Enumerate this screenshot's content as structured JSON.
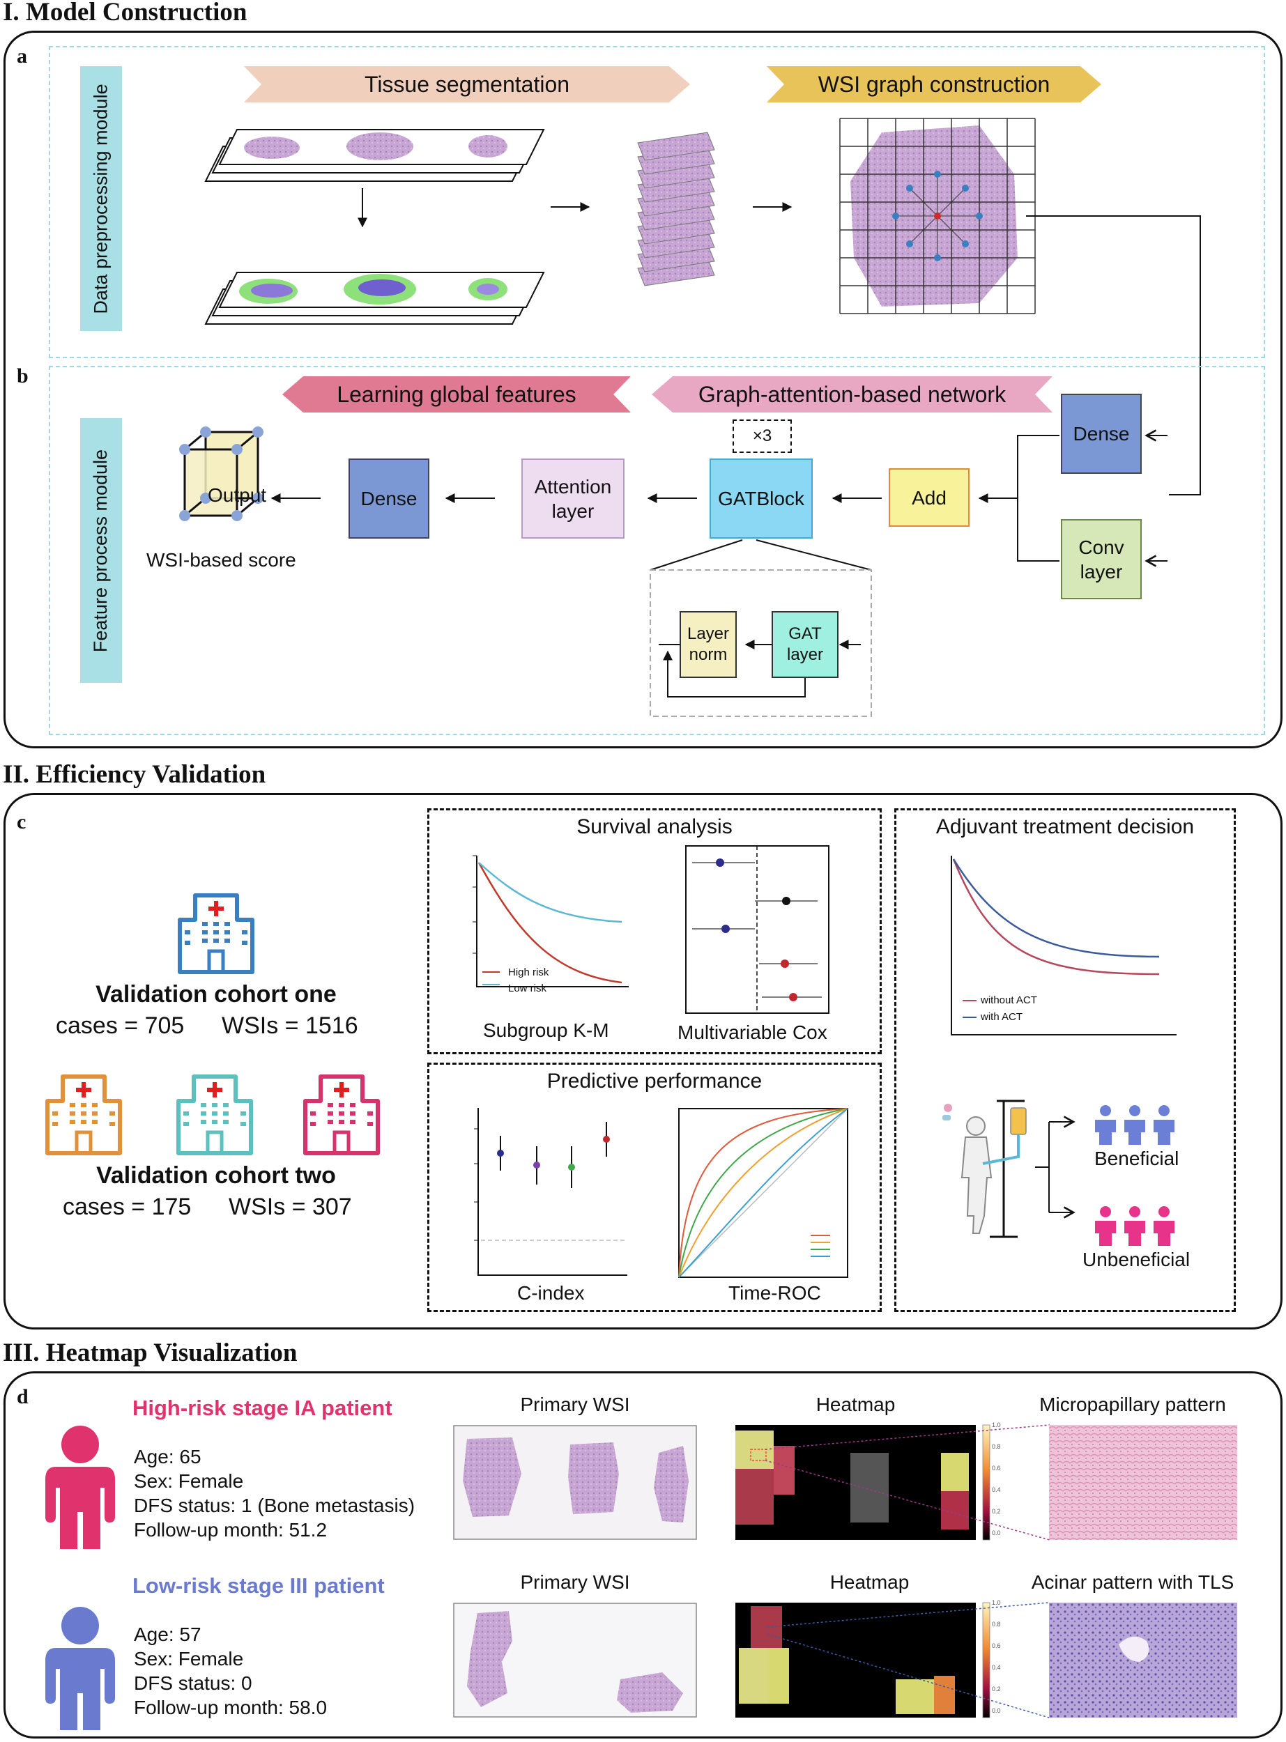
{
  "section1": {
    "title": "I. Model Construction"
  },
  "panel_a": {
    "label": "a",
    "side_label": "Data preprocessing module",
    "banner_segmentation": "Tissue segmentation",
    "banner_graph": "WSI graph construction"
  },
  "panel_b": {
    "label": "b",
    "side_label": "Feature process module",
    "banner_global": "Learning global features",
    "banner_gat": "Graph-attention-based network",
    "repeat": "×3",
    "output": "Output",
    "score": "WSI-based score",
    "dense_left": "Dense",
    "attention": "Attention layer",
    "gatblock": "GATBlock",
    "add": "Add",
    "dense_right": "Dense",
    "conv": "Conv layer",
    "layer_norm": "Layer norm",
    "gat_layer": "GAT layer"
  },
  "section2": {
    "title": "II. Efficiency Validation"
  },
  "panel_c": {
    "label": "c",
    "cohort_one": {
      "name": "Validation cohort one",
      "cases": "cases = 705",
      "wsis": "WSIs = 1516"
    },
    "cohort_two": {
      "name": "Validation cohort two",
      "cases": "cases = 175",
      "wsis": "WSIs = 307"
    },
    "survival_title": "Survival analysis",
    "km_label": "Subgroup K-M",
    "km_legend": [
      "High risk",
      "Low risk"
    ],
    "cox_label": "Multivariable Cox",
    "predictive_title": "Predictive performance",
    "cindex_label": "C-index",
    "roc_label": "Time-ROC",
    "adjuvant_title": "Adjuvant treatment decision",
    "act_legend": [
      "without ACT",
      "with ACT"
    ],
    "beneficial": "Beneficial",
    "unbeneficial": "Unbeneficial",
    "colors": {
      "high": "#c0392b",
      "low": "#5bb8d4",
      "blue_icon": "#3a7fc0",
      "orange_icon": "#e0913a",
      "teal_icon": "#5bc0be",
      "pink_icon": "#d6336c",
      "benefit": "#6b7fd7",
      "unbenefit": "#e8338a"
    }
  },
  "section3": {
    "title": "III. Heatmap Visualization"
  },
  "panel_d": {
    "label": "d",
    "high": {
      "title": "High-risk stage IA patient",
      "age": "Age: 65",
      "sex": "Sex: Female",
      "dfs": "DFS status: 1 (Bone metastasis)",
      "followup": "Follow-up month: 51.2",
      "primary": "Primary WSI",
      "heatmap": "Heatmap",
      "pattern": "Micropapillary pattern",
      "color": "#e0336e"
    },
    "low": {
      "title": "Low-risk stage III patient",
      "age": "Age: 57",
      "sex": "Sex: Female",
      "dfs": "DFS status: 0",
      "followup": "Follow-up month: 58.0",
      "primary": "Primary WSI",
      "heatmap": "Heatmap",
      "pattern": "Acinar pattern with TLS",
      "color": "#6a7bcf"
    },
    "colorbar_ticks": [
      "1.0",
      "0.8",
      "0.6",
      "0.4",
      "0.2",
      "0.0"
    ]
  }
}
